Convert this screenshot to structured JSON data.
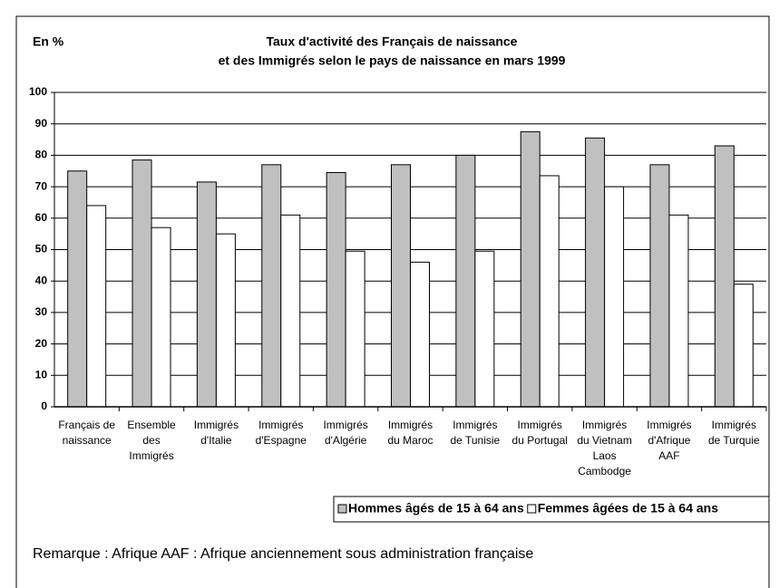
{
  "chart_data": {
    "type": "bar",
    "unit_label": "En %",
    "title": [
      "Taux d'activité des Français de naissance",
      "et des Immigrés selon le pays de naissance en mars 1999"
    ],
    "categories": [
      [
        "Français de",
        "naissance"
      ],
      [
        "Ensemble",
        "des",
        "Immigrés"
      ],
      [
        "Immigrés",
        "d'Italie"
      ],
      [
        "Immigrés",
        "d'Espagne"
      ],
      [
        "Immigrés",
        "d'Algérie"
      ],
      [
        "Immigrés",
        "du Maroc"
      ],
      [
        "Immigrés",
        "de Tunisie"
      ],
      [
        "Immigrés",
        "du Portugal"
      ],
      [
        "Immigrés",
        "du Vietnam",
        "Laos",
        "Cambodge"
      ],
      [
        "Immigrés",
        "d'Afrique",
        "AAF"
      ],
      [
        "Immigrés",
        "de Turquie"
      ]
    ],
    "series": [
      {
        "name": "Hommes âgés de 15 à 64 ans",
        "color": "#c0c0c0",
        "values": [
          75,
          78.5,
          71.5,
          77,
          74.5,
          77,
          80,
          87.5,
          85.5,
          77,
          83
        ]
      },
      {
        "name": "Femmes âgées de 15 à 64 ans",
        "color": "#ffffff",
        "values": [
          64,
          57,
          55,
          61,
          49.5,
          46,
          49.5,
          73.5,
          70,
          61,
          39
        ]
      }
    ],
    "ylim": [
      0,
      100
    ],
    "yticks": [
      0,
      10,
      20,
      30,
      40,
      50,
      60,
      70,
      80,
      90,
      100
    ],
    "grid": true,
    "legend": "bottom-right",
    "note": "Remarque : Afrique AAF : Afrique anciennement sous administration française"
  }
}
